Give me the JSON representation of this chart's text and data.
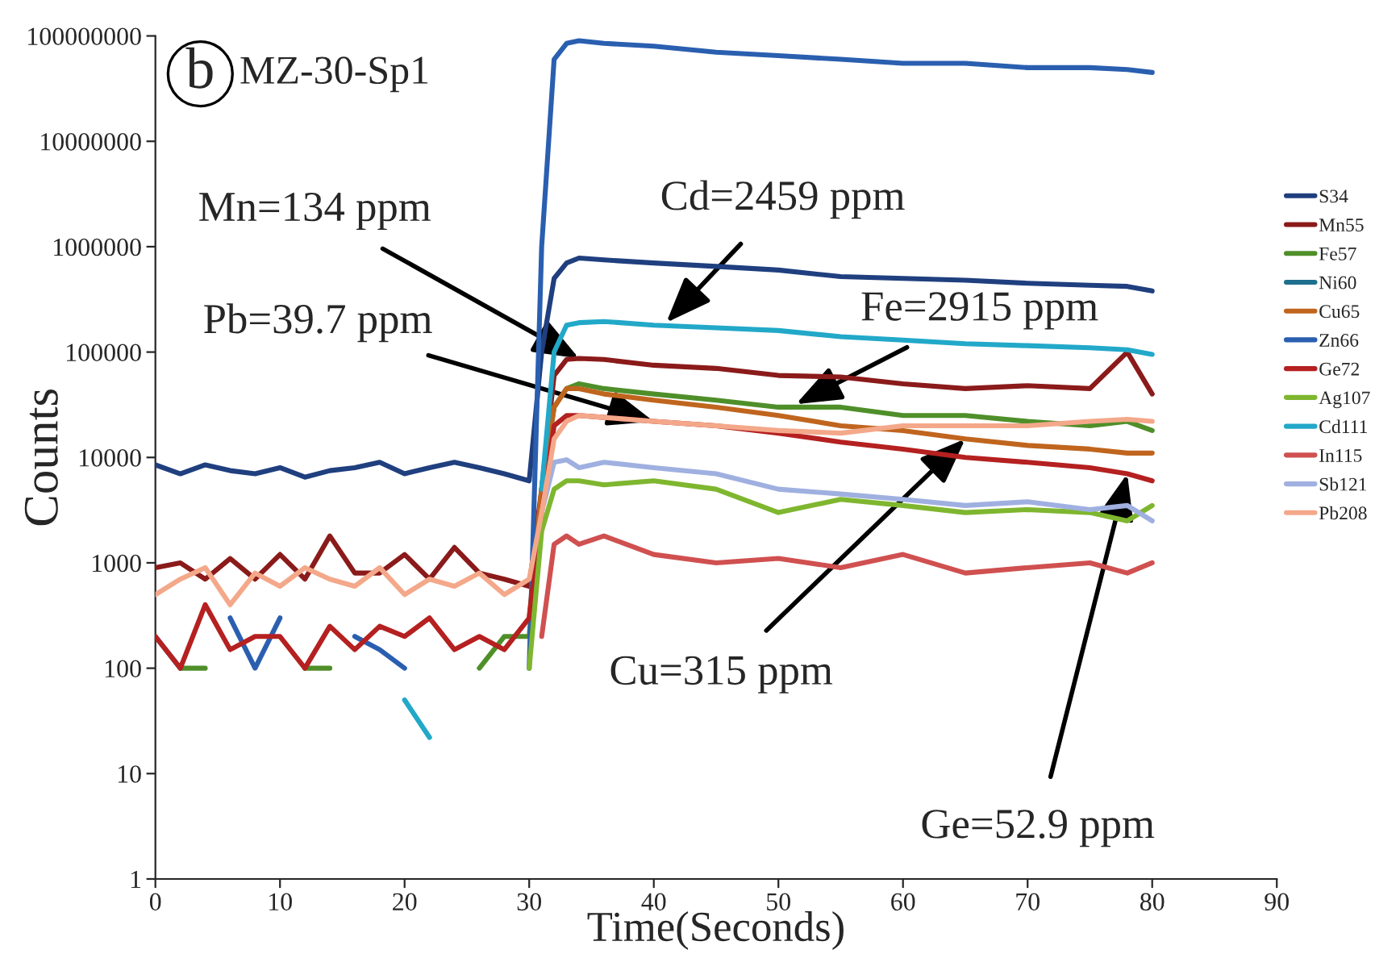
{
  "chart_data": {
    "type": "line",
    "xlabel": "Time(Seconds)",
    "ylabel": "Counts",
    "x": [
      0,
      2,
      4,
      6,
      8,
      10,
      12,
      14,
      16,
      18,
      20,
      22,
      24,
      26,
      28,
      30,
      31,
      32,
      33,
      34,
      36,
      40,
      45,
      50,
      55,
      60,
      65,
      70,
      75,
      78,
      80
    ],
    "series": [
      {
        "name": "S34",
        "color": "#1f3f7f",
        "values": [
          8500,
          7000,
          8500,
          7500,
          7000,
          8000,
          6500,
          7500,
          8000,
          9000,
          7000,
          8000,
          9000,
          8000,
          7000,
          6000,
          100000,
          500000,
          700000,
          780000,
          750000,
          700000,
          650000,
          600000,
          520000,
          500000,
          480000,
          450000,
          430000,
          420000,
          380000
        ]
      },
      {
        "name": "Mn55",
        "color": "#8b1a1a",
        "values": [
          900,
          1000,
          700,
          1100,
          700,
          1200,
          700,
          1800,
          800,
          800,
          1200,
          700,
          1400,
          800,
          700,
          600,
          5000,
          60000,
          85000,
          87000,
          85000,
          75000,
          70000,
          60000,
          58000,
          50000,
          45000,
          48000,
          45000,
          100000,
          40000
        ]
      },
      {
        "name": "Fe57",
        "color": "#4f8f2a",
        "values": [
          null,
          100,
          100,
          null,
          null,
          null,
          100,
          100,
          null,
          null,
          null,
          null,
          null,
          100,
          200,
          200,
          5000,
          30000,
          45000,
          50000,
          45000,
          40000,
          35000,
          30000,
          30000,
          25000,
          25000,
          22000,
          20000,
          22000,
          18000
        ]
      },
      {
        "name": "Ni60",
        "color": "#1f6f8f",
        "values": [
          null,
          null,
          null,
          null,
          null,
          null,
          null,
          null,
          null,
          null,
          null,
          null,
          null,
          null,
          null,
          null,
          null,
          null,
          null,
          null,
          null,
          null,
          null,
          null,
          null,
          null,
          null,
          null,
          null,
          null,
          null
        ]
      },
      {
        "name": "Cu65",
        "color": "#c0651e",
        "values": [
          null,
          null,
          null,
          null,
          null,
          null,
          null,
          null,
          null,
          null,
          null,
          null,
          null,
          null,
          null,
          300,
          5000,
          30000,
          45000,
          45000,
          40000,
          35000,
          30000,
          25000,
          20000,
          18000,
          15000,
          13000,
          12000,
          11000,
          11000
        ]
      },
      {
        "name": "Zn66",
        "color": "#2a5fb0",
        "values": [
          200,
          100,
          null,
          300,
          100,
          300,
          null,
          null,
          200,
          150,
          100,
          null,
          null,
          null,
          null,
          100,
          1000000,
          60000000,
          85000000,
          90000000,
          85000000,
          80000000,
          70000000,
          65000000,
          60000000,
          55000000,
          55000000,
          50000000,
          50000000,
          48000000,
          45000000
        ]
      },
      {
        "name": "Ge72",
        "color": "#b52020",
        "values": [
          200,
          100,
          400,
          150,
          200,
          200,
          100,
          250,
          150,
          250,
          200,
          300,
          150,
          200,
          150,
          300,
          3000,
          20000,
          25000,
          25000,
          24000,
          22000,
          20000,
          17000,
          14000,
          12000,
          10000,
          9000,
          8000,
          7000,
          6000
        ]
      },
      {
        "name": "Ag107",
        "color": "#7fb62f",
        "values": [
          null,
          null,
          null,
          null,
          null,
          null,
          null,
          null,
          null,
          null,
          null,
          null,
          null,
          null,
          null,
          100,
          2000,
          5000,
          6000,
          6000,
          5500,
          6000,
          5000,
          3000,
          4000,
          3500,
          3000,
          3200,
          3000,
          2500,
          3500
        ]
      },
      {
        "name": "Cd111",
        "color": "#22a8c8",
        "values": [
          null,
          null,
          null,
          null,
          null,
          null,
          null,
          null,
          null,
          null,
          50,
          22,
          null,
          null,
          null,
          null,
          5000,
          100000,
          180000,
          190000,
          195000,
          180000,
          170000,
          160000,
          140000,
          130000,
          120000,
          115000,
          110000,
          105000,
          95000
        ]
      },
      {
        "name": "In115",
        "color": "#d05050",
        "values": [
          null,
          null,
          null,
          null,
          null,
          null,
          null,
          null,
          null,
          null,
          null,
          null,
          null,
          null,
          null,
          null,
          200,
          1500,
          1800,
          1500,
          1800,
          1200,
          1000,
          1100,
          900,
          1200,
          800,
          900,
          1000,
          800,
          1000
        ]
      },
      {
        "name": "Sb121",
        "color": "#9fb0e0",
        "values": [
          null,
          null,
          null,
          null,
          null,
          null,
          null,
          null,
          null,
          null,
          null,
          null,
          null,
          null,
          null,
          null,
          3000,
          9000,
          9500,
          8000,
          9000,
          8000,
          7000,
          5000,
          4500,
          4000,
          3500,
          3800,
          3200,
          3500,
          2500
        ]
      },
      {
        "name": "Pb208",
        "color": "#f4a88a",
        "values": [
          500,
          700,
          900,
          400,
          800,
          600,
          900,
          700,
          600,
          900,
          500,
          700,
          600,
          800,
          500,
          700,
          3000,
          15000,
          22000,
          25000,
          24000,
          22000,
          20000,
          18000,
          17000,
          20000,
          20000,
          20000,
          22000,
          23000,
          22000
        ]
      }
    ],
    "log": "y",
    "xlim": [
      0,
      90
    ],
    "xticks": [
      0,
      10,
      20,
      30,
      40,
      50,
      60,
      70,
      80,
      90
    ],
    "ylim": [
      1,
      100000000
    ],
    "yticks": [
      1,
      10,
      100,
      1000,
      10000,
      100000,
      1000000,
      10000000,
      100000000
    ],
    "grid": false,
    "legend": "right",
    "marker": "none",
    "line_style": "solid",
    "annotations": [
      "b",
      "MZ-30-Sp1",
      {
        "text": "Mn=134 ppm",
        "x": 34,
        "y": 87000
      },
      {
        "text": "Cd=2459 ppm",
        "x": 41,
        "y": 190000
      },
      {
        "text": "Fe=2915 ppm",
        "x": 51.4,
        "y": 32000
      },
      {
        "text": "Pb=39.7 ppm",
        "x": 40,
        "y": 22000
      },
      {
        "text": "Cu=315 ppm",
        "x": 65,
        "y": 15000
      },
      {
        "text": "Ge=52.9 ppm",
        "x": 78,
        "y": 7000
      }
    ]
  }
}
